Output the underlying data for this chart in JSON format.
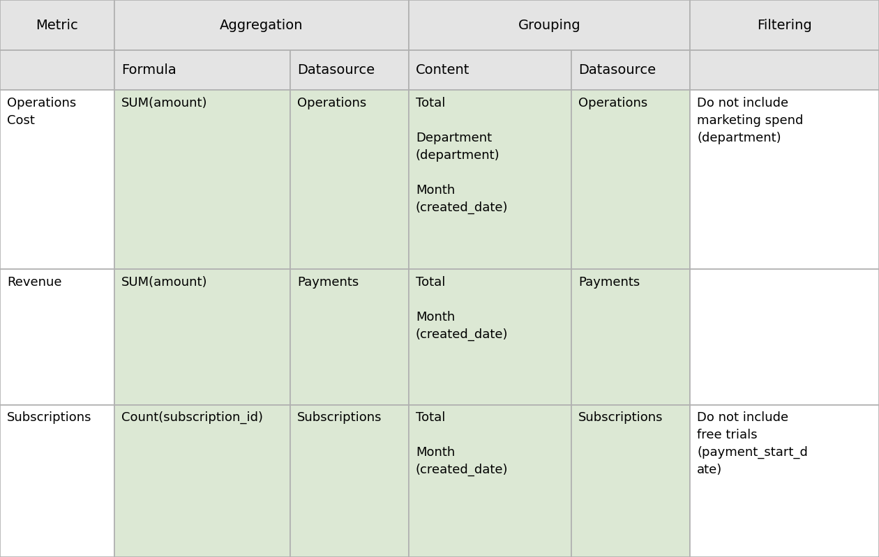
{
  "data_rows": [
    {
      "Metric": "Operations\nCost",
      "Formula": "SUM(amount)",
      "Datasource_agg": "Operations",
      "Content": "Total\n\nDepartment\n(department)\n\nMonth\n(created_date)",
      "Datasource_grp": "Operations",
      "Filtering": "Do not include\nmarketing spend\n(department)"
    },
    {
      "Metric": "Revenue",
      "Formula": "SUM(amount)",
      "Datasource_agg": "Payments",
      "Content": "Total\n\nMonth\n(created_date)",
      "Datasource_grp": "Payments",
      "Filtering": ""
    },
    {
      "Metric": "Subscriptions",
      "Formula": "Count(subscription_id)",
      "Datasource_agg": "Subscriptions",
      "Content": "Total\n\nMonth\n(created_date)",
      "Datasource_grp": "Subscriptions",
      "Filtering": "Do not include\nfree trials\n(payment_start_d\nate)"
    }
  ],
  "header_bg": "#e4e4e4",
  "cell_bg_green": "#dce8d4",
  "cell_bg_white": "#ffffff",
  "border_color": "#b0b0b0",
  "font_size": 13,
  "header_font_size": 14,
  "fig_width": 12.6,
  "fig_height": 7.99
}
